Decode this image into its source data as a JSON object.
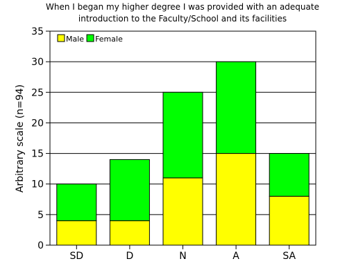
{
  "chart_data": {
    "type": "bar",
    "stacked": true,
    "title": [
      "When I began my higher degree I was provided with an adequate",
      "introduction to the Faculty/School and its facilities"
    ],
    "xlabel": "",
    "ylabel": "Arbitrary scale (n=94)",
    "categories": [
      "SD",
      "D",
      "N",
      "A",
      "SA"
    ],
    "series": [
      {
        "name": "Male",
        "color": "#ffff00",
        "values": [
          4,
          4,
          11,
          15,
          8
        ]
      },
      {
        "name": "Female",
        "color": "#00ff00",
        "values": [
          6,
          10,
          14,
          15,
          7
        ]
      }
    ],
    "ylim": [
      0,
      35
    ],
    "yticks": [
      0,
      5,
      10,
      15,
      20,
      25,
      30,
      35
    ],
    "grid": true,
    "legend_position": "top-left"
  }
}
